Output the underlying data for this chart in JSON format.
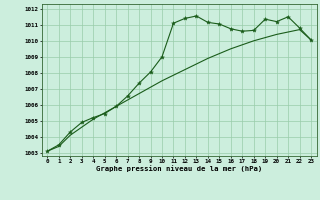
{
  "title": "Graphe pression niveau de la mer (hPa)",
  "bg_color": "#cceedd",
  "line_color": "#1a5c1a",
  "grid_color": "#99ccaa",
  "xlim": [
    -0.5,
    23.5
  ],
  "ylim": [
    1002.8,
    1012.3
  ],
  "xticks": [
    0,
    1,
    2,
    3,
    4,
    5,
    6,
    7,
    8,
    9,
    10,
    11,
    12,
    13,
    14,
    15,
    16,
    17,
    18,
    19,
    20,
    21,
    22,
    23
  ],
  "yticks": [
    1003,
    1004,
    1005,
    1006,
    1007,
    1008,
    1009,
    1010,
    1011,
    1012
  ],
  "series1_x": [
    0,
    1,
    2,
    3,
    4,
    5,
    6,
    7,
    8,
    9,
    10,
    11,
    12,
    13,
    14,
    15,
    16,
    17,
    18,
    19,
    20,
    21,
    22,
    23
  ],
  "series1_y": [
    1003.1,
    1003.5,
    1004.3,
    1004.9,
    1005.2,
    1005.45,
    1005.9,
    1006.55,
    1007.35,
    1008.05,
    1009.0,
    1011.1,
    1011.4,
    1011.55,
    1011.15,
    1011.05,
    1010.75,
    1010.6,
    1010.65,
    1011.35,
    1011.2,
    1011.5,
    1010.8,
    1010.05
  ],
  "series2_x": [
    0,
    1,
    2,
    3,
    4,
    5,
    6,
    7,
    8,
    9,
    10,
    11,
    12,
    13,
    14,
    15,
    16,
    17,
    18,
    19,
    20,
    21,
    22,
    23
  ],
  "series2_y": [
    1003.1,
    1003.4,
    1004.1,
    1004.6,
    1005.1,
    1005.5,
    1005.9,
    1006.3,
    1006.7,
    1007.1,
    1007.5,
    1007.85,
    1008.2,
    1008.55,
    1008.9,
    1009.2,
    1009.5,
    1009.75,
    1010.0,
    1010.2,
    1010.4,
    1010.55,
    1010.7,
    1010.05
  ]
}
